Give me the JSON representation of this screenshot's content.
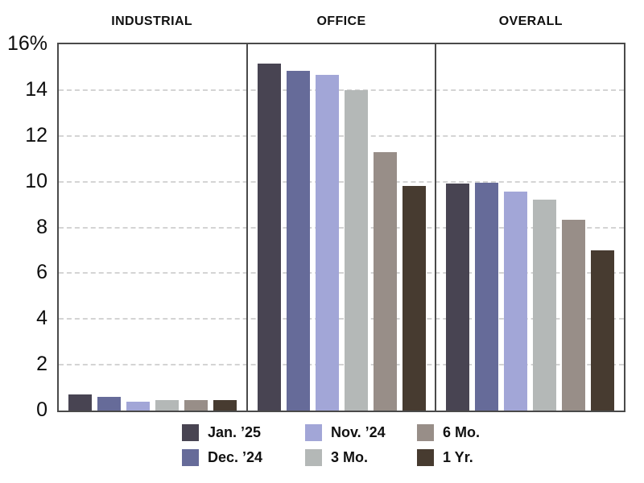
{
  "chart_data": {
    "type": "bar",
    "title": "",
    "panels": [
      "INDUSTRIAL",
      "OFFICE",
      "OVERALL"
    ],
    "series": [
      {
        "name": "Jan. ’25",
        "color": "#484452",
        "values": [
          0.7,
          15.15,
          9.9
        ]
      },
      {
        "name": "Dec. ’24",
        "color": "#666b99",
        "values": [
          0.6,
          14.85,
          9.95
        ]
      },
      {
        "name": "Nov. ’24",
        "color": "#a2a6d7",
        "values": [
          0.4,
          14.65,
          9.55
        ]
      },
      {
        "name": "3 Mo.",
        "color": "#b4b8b7",
        "values": [
          0.45,
          14.0,
          9.2
        ]
      },
      {
        "name": "6 Mo.",
        "color": "#988e88",
        "values": [
          0.45,
          11.3,
          8.35
        ]
      },
      {
        "name": "1 Yr.",
        "color": "#473b30",
        "values": [
          0.45,
          9.8,
          7.0
        ]
      }
    ],
    "y_axis": {
      "unit": "%",
      "max": 16,
      "min": 0,
      "ticks": [
        0,
        2,
        4,
        6,
        8,
        10,
        12,
        14,
        16
      ],
      "tick_labels": [
        "0",
        "2",
        "4",
        "6",
        "8",
        "10",
        "12",
        "14",
        "16%"
      ],
      "grid": "dashed horizontal at each tick"
    },
    "legend": {
      "position": "bottom",
      "columns": [
        [
          "Jan. ’25",
          "Dec. ’24"
        ],
        [
          "Nov. ’24",
          "3 Mo."
        ],
        [
          "6 Mo.",
          "1 Yr."
        ]
      ]
    }
  }
}
